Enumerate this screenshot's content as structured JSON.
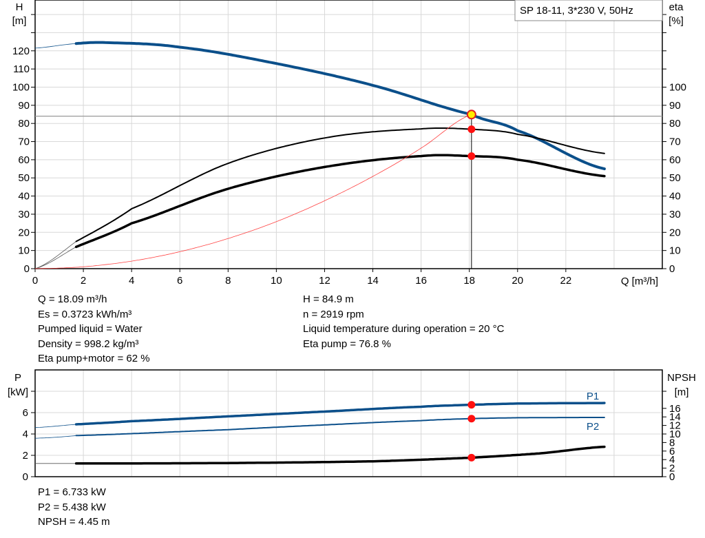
{
  "chart_data": [
    {
      "type": "line",
      "title": "SP 18-11, 3*230 V, 50Hz",
      "xlabel": "Q [m³/h]",
      "ylabel_left": [
        "H",
        "[m]"
      ],
      "ylabel_right": [
        "eta",
        "[%]"
      ],
      "xlim": [
        0,
        26
      ],
      "ylim_left": [
        0,
        148
      ],
      "ylim_right": [
        0,
        148
      ],
      "x_ticks": [
        0,
        2,
        4,
        6,
        8,
        10,
        12,
        14,
        16,
        18,
        20,
        22
      ],
      "y_ticks_left": [
        0,
        10,
        20,
        30,
        40,
        50,
        60,
        70,
        80,
        90,
        100,
        110,
        120
      ],
      "y_ticks_right": [
        0,
        10,
        20,
        30,
        40,
        50,
        60,
        70,
        80,
        90,
        100
      ],
      "grid": true,
      "series": [
        {
          "key": "H",
          "axis": "left",
          "color": "#0b4f8a",
          "x": [
            0,
            1.7,
            3,
            6,
            10,
            14,
            18.09,
            20,
            23.6
          ],
          "y": [
            121.5,
            124,
            124.5,
            122,
            113,
            101,
            84.9,
            76,
            55
          ]
        },
        {
          "key": "eta_pump",
          "axis": "right",
          "color": "#000000",
          "x": [
            0,
            1.7,
            4,
            8,
            12,
            16,
            18.09,
            20,
            23.6
          ],
          "y": [
            0,
            15,
            33,
            58,
            72,
            77,
            76.8,
            74,
            63.5
          ]
        },
        {
          "key": "eta_pump_motor",
          "axis": "right",
          "color": "#000000",
          "x": [
            0,
            1.7,
            4,
            8,
            12,
            16,
            18.09,
            20,
            23.6
          ],
          "y": [
            0,
            12,
            25,
            44,
            56,
            62,
            62,
            60,
            51
          ]
        },
        {
          "key": "system_curve",
          "axis": "left",
          "color": "#ff4040",
          "x": [
            0,
            2,
            4,
            6,
            8,
            10,
            12,
            14,
            16,
            18.09
          ],
          "y": [
            0,
            1.04,
            4.15,
            9.34,
            16.6,
            25.9,
            37.4,
            50.8,
            66.4,
            84.9
          ]
        }
      ],
      "duty_point": {
        "Q": 18.09,
        "H": 84.9,
        "eta_pump": 76.8,
        "eta_pump_motor": 62
      },
      "reference_line_H": 84
    },
    {
      "type": "line",
      "ylabel_left": [
        "P",
        "[kW]"
      ],
      "ylabel_right": [
        "NPSH",
        "[m]"
      ],
      "xlim": [
        0,
        26
      ],
      "ylim_left": [
        0,
        10
      ],
      "ylim_right": [
        0,
        25
      ],
      "y_ticks_left": [
        0,
        2,
        4,
        6
      ],
      "y_ticks_right": [
        0,
        2,
        4,
        6,
        8,
        10,
        12,
        14,
        16
      ],
      "grid": true,
      "series": [
        {
          "name": "P1",
          "axis": "left",
          "color": "#0b4f8a",
          "x": [
            0,
            1.7,
            4,
            8,
            12,
            16,
            18.09,
            20,
            23.6
          ],
          "y": [
            4.6,
            4.9,
            5.2,
            5.65,
            6.1,
            6.55,
            6.733,
            6.85,
            6.9
          ]
        },
        {
          "name": "P2",
          "axis": "left",
          "color": "#0b4f8a",
          "x": [
            0,
            1.7,
            8,
            12,
            16,
            18.09,
            20,
            23.6
          ],
          "y": [
            3.6,
            3.85,
            4.4,
            4.85,
            5.25,
            5.438,
            5.52,
            5.55
          ]
        },
        {
          "key": "NPSH",
          "axis": "right",
          "color": "#000000",
          "x": [
            0,
            1.7,
            8,
            14,
            18.09,
            21,
            23.6
          ],
          "y": [
            3.1,
            3.1,
            3.2,
            3.6,
            4.45,
            5.5,
            7.0
          ]
        }
      ],
      "duty_point": {
        "Q": 18.09,
        "P1": 6.733,
        "P2": 5.438,
        "NPSH": 4.45
      }
    }
  ],
  "info_left": [
    "Q = 18.09 m³/h",
    "Es = 0.3723 kWh/m³",
    "Pumped liquid = Water",
    "Density = 998.2 kg/m³",
    "Eta pump+motor = 62 %"
  ],
  "info_right": [
    "H = 84.9 m",
    "n = 2919 rpm",
    "Liquid temperature during operation = 20 °C",
    "Eta pump = 76.8 %"
  ],
  "info_bottom": [
    "P1 = 6.733 kW",
    "P2 = 5.438 kW",
    "NPSH = 4.45 m"
  ]
}
